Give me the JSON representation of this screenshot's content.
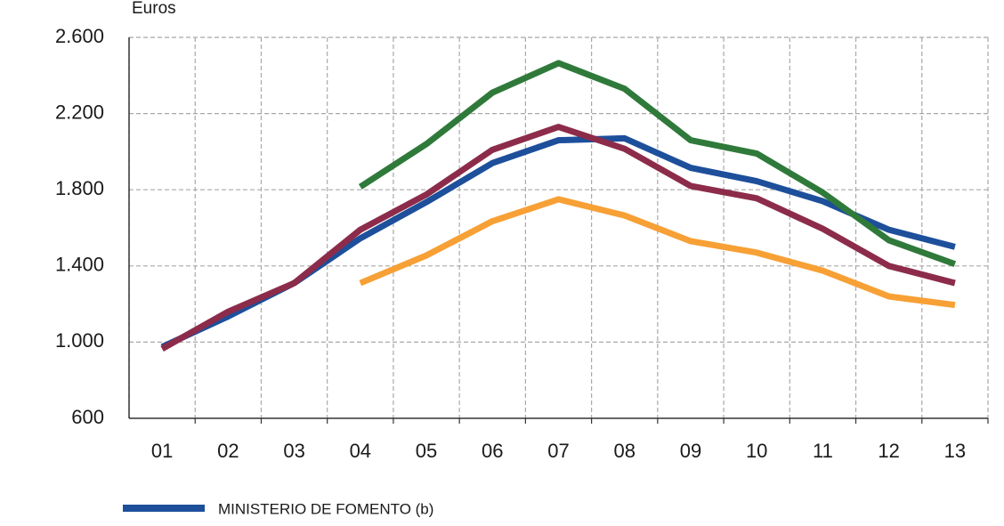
{
  "chart_data": {
    "type": "line",
    "y_label": "Euros",
    "categories": [
      "01",
      "02",
      "03",
      "04",
      "05",
      "06",
      "07",
      "08",
      "09",
      "10",
      "11",
      "12",
      "13"
    ],
    "series": [
      {
        "name": "MINISTERIO DE FOMENTO (b)",
        "color": "#1d4f9b",
        "values": [
          975,
          1135,
          1310,
          1545,
          1735,
          1940,
          2060,
          2070,
          1915,
          1845,
          1740,
          1590,
          1500
        ]
      },
      {
        "color": "#8c2c4a",
        "values": [
          965,
          1160,
          1310,
          1590,
          1775,
          2010,
          2130,
          2015,
          1820,
          1755,
          1595,
          1400,
          1310
        ]
      },
      {
        "color": "#2f7a3a",
        "values": [
          null,
          null,
          null,
          1815,
          2040,
          2310,
          2465,
          2330,
          2060,
          1990,
          1785,
          1535,
          1410
        ]
      },
      {
        "color": "#f7a035",
        "values": [
          null,
          null,
          null,
          1310,
          1455,
          1635,
          1750,
          1665,
          1530,
          1470,
          1375,
          1240,
          1195
        ]
      }
    ],
    "ylim": [
      600,
      2600
    ],
    "yticks": [
      600,
      {
        "value": 1000,
        "label": "1.000"
      },
      {
        "value": 1400,
        "label": "1.400"
      },
      {
        "value": 1800,
        "label": "1.800"
      },
      {
        "value": 2200,
        "label": "2.200"
      },
      {
        "value": 2600,
        "label": "2.600"
      }
    ],
    "grid": true
  }
}
